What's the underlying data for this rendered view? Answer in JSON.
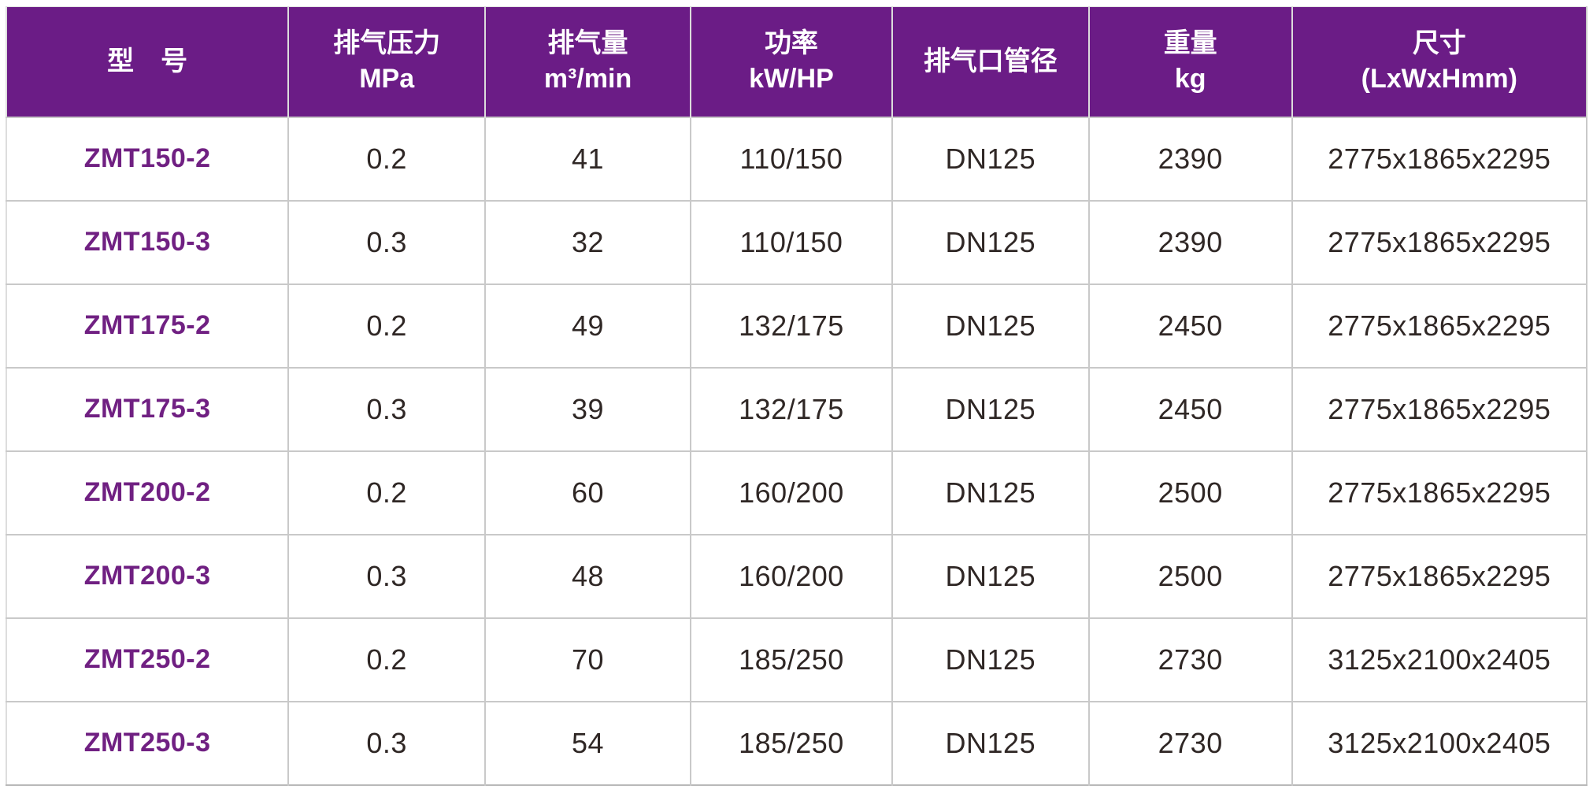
{
  "colors": {
    "header_bg": "#6B1C86",
    "header_text": "#FFFFFF",
    "model_text": "#702082",
    "body_text": "#2F2725",
    "grid_line": "#C9C9C9",
    "header_grid_line": "#DCDCDC",
    "page_bg": "#FFFFFF"
  },
  "table": {
    "headers": [
      {
        "line1": "型　号",
        "line2": ""
      },
      {
        "line1": "排气压力",
        "line2": "MPa"
      },
      {
        "line1": "排气量",
        "line2": "m³/min"
      },
      {
        "line1": "功率",
        "line2": "kW/HP"
      },
      {
        "line1": "排气口管径",
        "line2": ""
      },
      {
        "line1": "重量",
        "line2": "kg"
      },
      {
        "line1": "尺寸",
        "line2": "(LxWxHmm)"
      }
    ],
    "rows": [
      [
        "ZMT150-2",
        "0.2",
        "41",
        "110/150",
        "DN125",
        "2390",
        "2775x1865x2295"
      ],
      [
        "ZMT150-3",
        "0.3",
        "32",
        "110/150",
        "DN125",
        "2390",
        "2775x1865x2295"
      ],
      [
        "ZMT175-2",
        "0.2",
        "49",
        "132/175",
        "DN125",
        "2450",
        "2775x1865x2295"
      ],
      [
        "ZMT175-3",
        "0.3",
        "39",
        "132/175",
        "DN125",
        "2450",
        "2775x1865x2295"
      ],
      [
        "ZMT200-2",
        "0.2",
        "60",
        "160/200",
        "DN125",
        "2500",
        "2775x1865x2295"
      ],
      [
        "ZMT200-3",
        "0.3",
        "48",
        "160/200",
        "DN125",
        "2500",
        "2775x1865x2295"
      ],
      [
        "ZMT250-2",
        "0.2",
        "70",
        "185/250",
        "DN125",
        "2730",
        "3125x2100x2405"
      ],
      [
        "ZMT250-3",
        "0.3",
        "54",
        "185/250",
        "DN125",
        "2730",
        "3125x2100x2405"
      ]
    ]
  }
}
